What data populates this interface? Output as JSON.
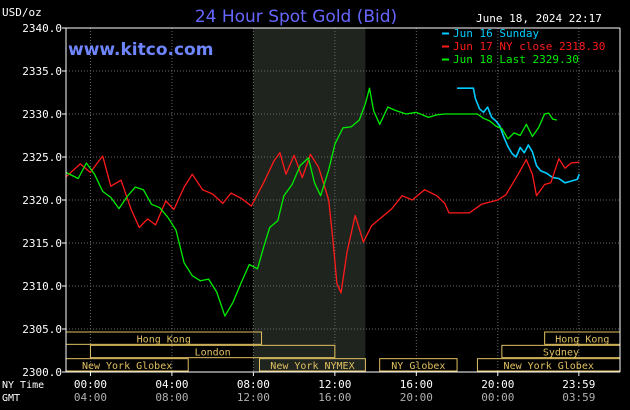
{
  "header": {
    "title": "24 Hour Spot Gold (Bid)",
    "unit": "USD/oz",
    "timestamp": "June 18, 2024 22:17",
    "brand": "www.kitco.com"
  },
  "axis_labels": {
    "ny_time": "NY Time",
    "gmt": "GMT"
  },
  "colors": {
    "background": "#000000",
    "axis": "#ffffff",
    "title": "#6666ff",
    "brand": "#6f86ff",
    "gold": "#e0c060",
    "series_sunday": "#00ccff",
    "series_ny_close": "#ff1a1a",
    "series_last": "#00ee00",
    "shade": "#1f241f"
  },
  "sessions": {
    "rows": [
      [
        {
          "label": "Hong Kong",
          "start": -1.2,
          "end": 8.4
        },
        {
          "label": "Hong Kong",
          "start": 22.3,
          "end": 26.0
        }
      ],
      [
        {
          "label": "London",
          "start": 0.0,
          "end": 12.0
        },
        {
          "label": "Sydney",
          "start": 20.2,
          "end": 26.0
        }
      ],
      [
        {
          "label": "New York Globex",
          "start": -1.2,
          "end": 4.8
        },
        {
          "label": "New York NYMEX",
          "start": 8.3,
          "end": 13.5
        },
        {
          "label": "NY Globex",
          "start": 14.2,
          "end": 18.0
        },
        {
          "label": "New York Globex",
          "start": 19.0,
          "end": 26.0
        }
      ]
    ]
  },
  "chart_data": {
    "type": "line",
    "title": "24 Hour Spot Gold (Bid)",
    "ylabel": "USD/oz",
    "xlim": [
      -1.2,
      26
    ],
    "ylim": [
      2300,
      2340
    ],
    "y_ticks": [
      "2300.0",
      "2305.0",
      "2310.0",
      "2315.0",
      "2320.0",
      "2325.0",
      "2330.0",
      "2335.0",
      "2340.0"
    ],
    "x_ticks_ny": [
      "00:00",
      "04:00",
      "08:00",
      "12:00",
      "16:00",
      "20:00",
      "23:59"
    ],
    "x_ticks_gmt": [
      "04:00",
      "08:00",
      "12:00",
      "16:00",
      "20:00",
      "00:00",
      "03:59"
    ],
    "x_tick_positions": [
      0,
      4,
      8,
      12,
      16,
      20,
      23.98
    ],
    "grid": true,
    "shaded_region": [
      8.0,
      13.5
    ],
    "legend_position": "top-right",
    "series": [
      {
        "name": "Jun 16 Sunday",
        "color": "#00ccff",
        "points": [
          [
            18.0,
            2333.0
          ],
          [
            18.8,
            2333.0
          ],
          [
            18.9,
            2331.8
          ],
          [
            19.1,
            2330.6
          ],
          [
            19.3,
            2330.2
          ],
          [
            19.5,
            2330.8
          ],
          [
            19.7,
            2329.6
          ],
          [
            19.9,
            2329.2
          ],
          [
            20.1,
            2328.6
          ],
          [
            20.3,
            2327.3
          ],
          [
            20.5,
            2326.2
          ],
          [
            20.7,
            2325.4
          ],
          [
            20.9,
            2325.0
          ],
          [
            21.1,
            2326.1
          ],
          [
            21.3,
            2325.5
          ],
          [
            21.5,
            2326.4
          ],
          [
            21.7,
            2325.6
          ],
          [
            21.9,
            2324.0
          ],
          [
            22.1,
            2323.4
          ],
          [
            22.4,
            2323.1
          ],
          [
            22.7,
            2322.6
          ],
          [
            23.0,
            2322.5
          ],
          [
            23.3,
            2322.0
          ],
          [
            23.6,
            2322.2
          ],
          [
            23.9,
            2322.4
          ],
          [
            24.0,
            2323.0
          ]
        ]
      },
      {
        "name": "Jun 17 NY close 2318.30",
        "color": "#ff1a1a",
        "points": [
          [
            -1.2,
            2322.7
          ],
          [
            -0.5,
            2324.2
          ],
          [
            0.0,
            2323.2
          ],
          [
            0.3,
            2324.2
          ],
          [
            0.6,
            2325.1
          ],
          [
            1.0,
            2321.6
          ],
          [
            1.5,
            2322.3
          ],
          [
            2.0,
            2318.9
          ],
          [
            2.4,
            2316.8
          ],
          [
            2.8,
            2317.8
          ],
          [
            3.2,
            2317.1
          ],
          [
            3.7,
            2319.9
          ],
          [
            4.1,
            2318.9
          ],
          [
            4.6,
            2321.5
          ],
          [
            5.0,
            2323.0
          ],
          [
            5.5,
            2321.2
          ],
          [
            6.0,
            2320.7
          ],
          [
            6.5,
            2319.6
          ],
          [
            6.9,
            2320.8
          ],
          [
            7.4,
            2320.2
          ],
          [
            7.9,
            2319.3
          ],
          [
            8.5,
            2322.0
          ],
          [
            9.0,
            2324.5
          ],
          [
            9.3,
            2325.5
          ],
          [
            9.6,
            2323.0
          ],
          [
            10.0,
            2325.2
          ],
          [
            10.4,
            2322.6
          ],
          [
            10.8,
            2325.3
          ],
          [
            11.2,
            2323.8
          ],
          [
            11.7,
            2320.0
          ],
          [
            11.9,
            2315.5
          ],
          [
            12.1,
            2310.3
          ],
          [
            12.3,
            2309.2
          ],
          [
            12.6,
            2314.0
          ],
          [
            13.0,
            2318.2
          ],
          [
            13.4,
            2315.1
          ],
          [
            13.8,
            2317.0
          ],
          [
            14.3,
            2318.0
          ],
          [
            14.8,
            2319.0
          ],
          [
            15.3,
            2320.5
          ],
          [
            15.8,
            2320.0
          ],
          [
            16.4,
            2321.2
          ],
          [
            17.0,
            2320.5
          ],
          [
            17.4,
            2319.6
          ],
          [
            17.6,
            2318.5
          ],
          [
            18.6,
            2318.5
          ],
          [
            19.2,
            2319.5
          ],
          [
            20.0,
            2320.0
          ],
          [
            20.4,
            2320.6
          ],
          [
            21.0,
            2323.0
          ],
          [
            21.4,
            2324.7
          ],
          [
            21.7,
            2323.0
          ],
          [
            21.9,
            2320.5
          ],
          [
            22.3,
            2321.8
          ],
          [
            22.6,
            2322.0
          ],
          [
            23.0,
            2324.8
          ],
          [
            23.3,
            2323.7
          ],
          [
            23.6,
            2324.3
          ],
          [
            24.0,
            2324.4
          ]
        ]
      },
      {
        "name": "Jun 18 Last 2329.30",
        "color": "#00ee00",
        "points": [
          [
            -1.2,
            2323.2
          ],
          [
            -0.6,
            2322.5
          ],
          [
            -0.2,
            2324.3
          ],
          [
            0.2,
            2323.0
          ],
          [
            0.6,
            2321.0
          ],
          [
            1.0,
            2320.3
          ],
          [
            1.4,
            2319.0
          ],
          [
            1.8,
            2320.4
          ],
          [
            2.2,
            2321.5
          ],
          [
            2.6,
            2321.2
          ],
          [
            3.0,
            2319.5
          ],
          [
            3.4,
            2319.1
          ],
          [
            3.8,
            2318.0
          ],
          [
            4.2,
            2316.5
          ],
          [
            4.6,
            2312.7
          ],
          [
            5.0,
            2311.2
          ],
          [
            5.4,
            2310.6
          ],
          [
            5.8,
            2310.8
          ],
          [
            6.2,
            2309.3
          ],
          [
            6.6,
            2306.5
          ],
          [
            7.0,
            2308.1
          ],
          [
            7.4,
            2310.4
          ],
          [
            7.8,
            2312.5
          ],
          [
            8.2,
            2312.0
          ],
          [
            8.5,
            2314.5
          ],
          [
            8.8,
            2316.8
          ],
          [
            9.2,
            2317.6
          ],
          [
            9.5,
            2320.5
          ],
          [
            9.9,
            2321.8
          ],
          [
            10.3,
            2324.0
          ],
          [
            10.7,
            2324.9
          ],
          [
            11.0,
            2322.0
          ],
          [
            11.3,
            2320.5
          ],
          [
            11.7,
            2323.5
          ],
          [
            12.0,
            2326.5
          ],
          [
            12.4,
            2328.4
          ],
          [
            12.8,
            2328.5
          ],
          [
            13.2,
            2329.3
          ],
          [
            13.5,
            2331.2
          ],
          [
            13.7,
            2333.0
          ],
          [
            13.9,
            2330.4
          ],
          [
            14.2,
            2328.8
          ],
          [
            14.6,
            2330.8
          ],
          [
            15.0,
            2330.4
          ],
          [
            15.5,
            2330.0
          ],
          [
            16.0,
            2330.2
          ],
          [
            16.6,
            2329.6
          ],
          [
            17.0,
            2329.9
          ],
          [
            17.4,
            2330.0
          ],
          [
            19.0,
            2330.0
          ],
          [
            19.3,
            2329.5
          ],
          [
            19.6,
            2329.2
          ],
          [
            19.9,
            2328.6
          ],
          [
            20.2,
            2328.3
          ],
          [
            20.5,
            2327.1
          ],
          [
            20.8,
            2327.8
          ],
          [
            21.1,
            2327.5
          ],
          [
            21.4,
            2328.8
          ],
          [
            21.7,
            2327.4
          ],
          [
            22.0,
            2328.4
          ],
          [
            22.3,
            2330.0
          ],
          [
            22.5,
            2330.1
          ],
          [
            22.7,
            2329.4
          ],
          [
            22.9,
            2329.3
          ]
        ]
      }
    ]
  }
}
